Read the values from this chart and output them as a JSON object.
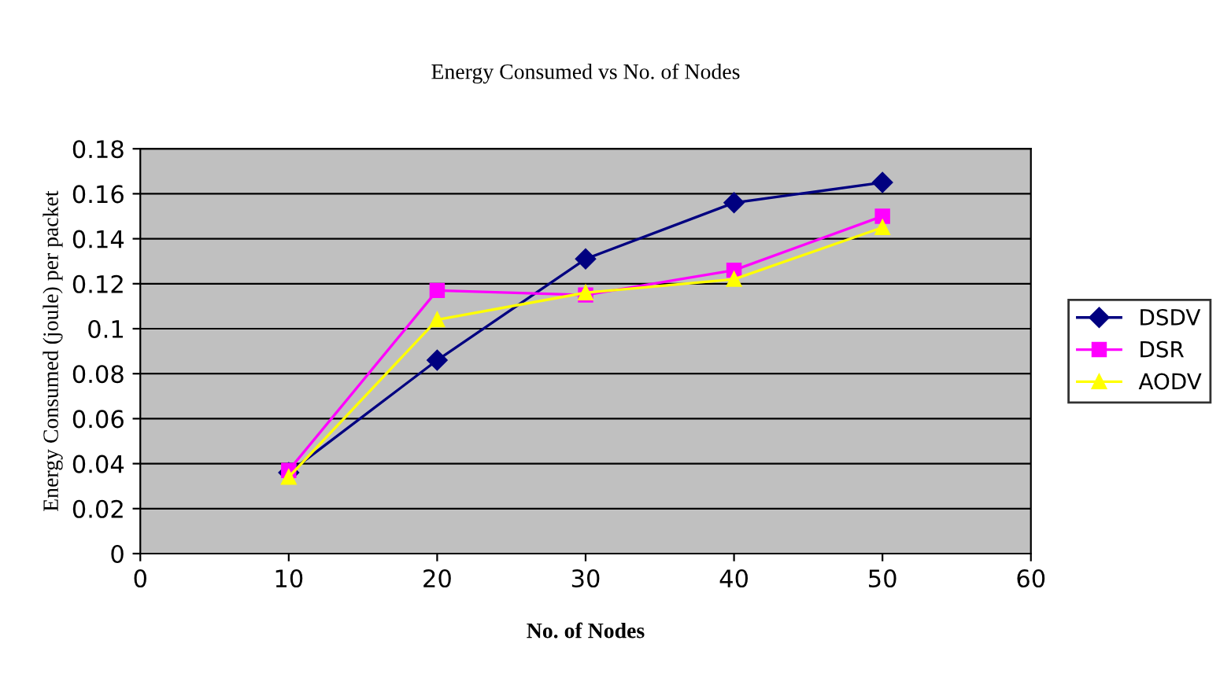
{
  "chart_data": {
    "type": "line",
    "title": "Energy Consumed vs No. of Nodes",
    "xlabel": "No. of Nodes",
    "ylabel": "Energy Consumed (joule) per packet",
    "x": [
      10,
      20,
      30,
      40,
      50
    ],
    "series": [
      {
        "name": "DSDV",
        "color": "#000080",
        "values": [
          0.036,
          0.086,
          0.131,
          0.156,
          0.165
        ],
        "marker": "diamond"
      },
      {
        "name": "DSR",
        "color": "#ff00ff",
        "values": [
          0.037,
          0.117,
          0.115,
          0.126,
          0.15
        ],
        "marker": "square"
      },
      {
        "name": "AODV",
        "color": "#ffff00",
        "values": [
          0.034,
          0.104,
          0.116,
          0.122,
          0.145
        ],
        "marker": "triangle"
      }
    ],
    "xlim": [
      0,
      60
    ],
    "xticks": [
      0,
      10,
      20,
      30,
      40,
      50,
      60
    ],
    "ylim": [
      0,
      0.18
    ],
    "yticks": [
      0,
      0.02,
      0.04,
      0.06,
      0.08,
      0.1,
      0.12,
      0.14,
      0.16,
      0.18
    ],
    "grid": "y",
    "legend": "right"
  }
}
